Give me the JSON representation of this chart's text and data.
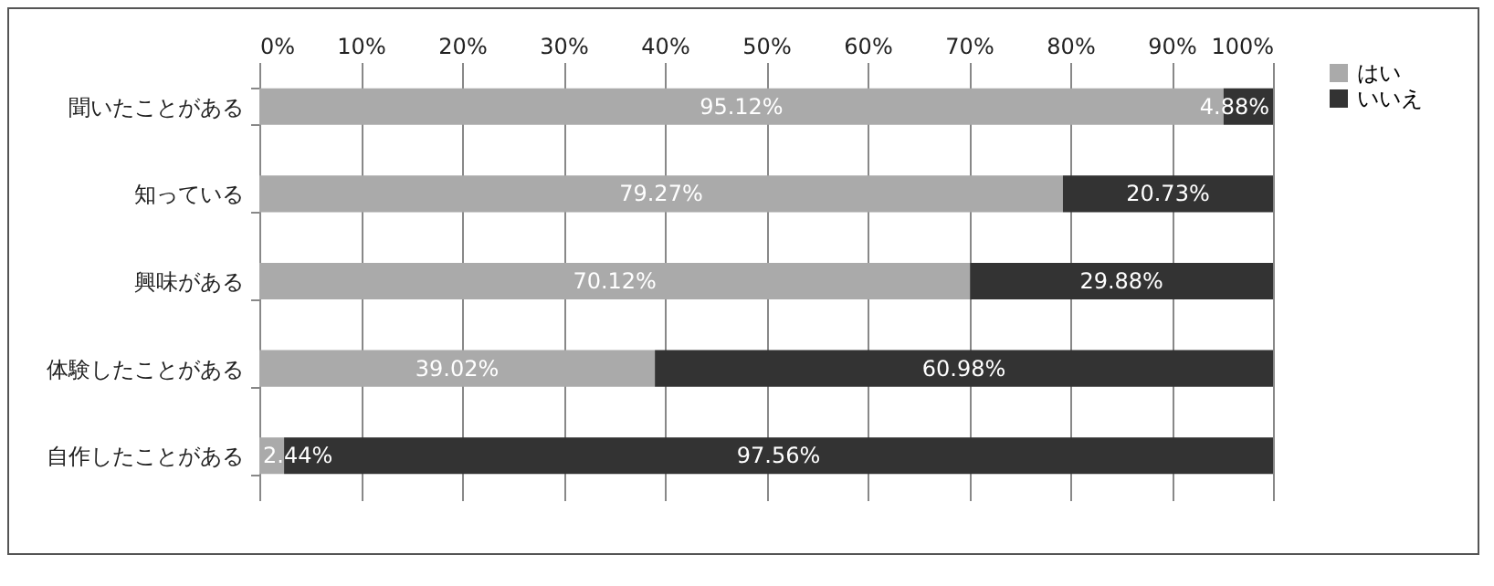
{
  "chart_data": {
    "type": "bar",
    "orientation": "horizontal",
    "stacked": true,
    "categories": [
      "聞いたことがある",
      "知っている",
      "興味がある",
      "体験したことがある",
      "自作したことがある"
    ],
    "series": [
      {
        "name": "はい",
        "color": "#aaaaaa",
        "values": [
          95.12,
          79.27,
          70.12,
          39.02,
          2.44
        ],
        "value_labels": [
          "95.12%",
          "79.27%",
          "70.12%",
          "39.02%",
          "2.44%"
        ]
      },
      {
        "name": "いいえ",
        "color": "#333333",
        "values": [
          4.88,
          20.73,
          29.88,
          60.98,
          97.56
        ],
        "value_labels": [
          "4.88%",
          "20.73%",
          "29.88%",
          "60.98%",
          "97.56%"
        ]
      }
    ],
    "xlim": [
      0,
      100
    ],
    "xticks": [
      {
        "value": 0,
        "label": "0%"
      },
      {
        "value": 10,
        "label": "10%"
      },
      {
        "value": 20,
        "label": "20%"
      },
      {
        "value": 30,
        "label": "30%"
      },
      {
        "value": 40,
        "label": "40%"
      },
      {
        "value": 50,
        "label": "50%"
      },
      {
        "value": 60,
        "label": "60%"
      },
      {
        "value": 70,
        "label": "70%"
      },
      {
        "value": 80,
        "label": "80%"
      },
      {
        "value": 90,
        "label": "90%"
      },
      {
        "value": 100,
        "label": "100%"
      }
    ],
    "grid": "x",
    "legend": "right"
  }
}
